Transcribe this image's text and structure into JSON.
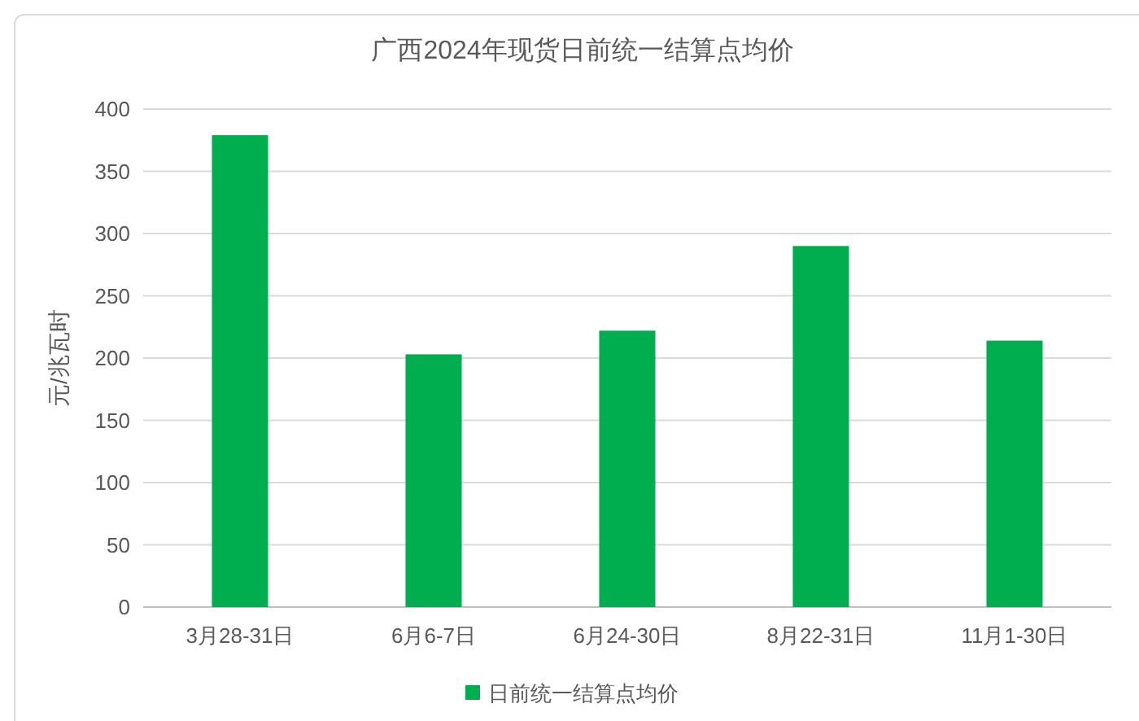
{
  "chart_data": {
    "type": "bar",
    "title": "广西2024年现货日前统一结算点均价",
    "ylabel": "元/兆瓦时",
    "categories": [
      "3月28-31日",
      "6月6-7日",
      "6月24-30日",
      "8月22-31日",
      "11月1-30日"
    ],
    "series": [
      {
        "name": "日前统一结算点均价",
        "color": "#00ad4f",
        "values": [
          379,
          203,
          222,
          290,
          214
        ]
      }
    ],
    "ylim": [
      0,
      400
    ],
    "yticks": [
      0,
      50,
      100,
      150,
      200,
      250,
      300,
      350,
      400
    ],
    "grid": "y",
    "legend": "bottom"
  }
}
